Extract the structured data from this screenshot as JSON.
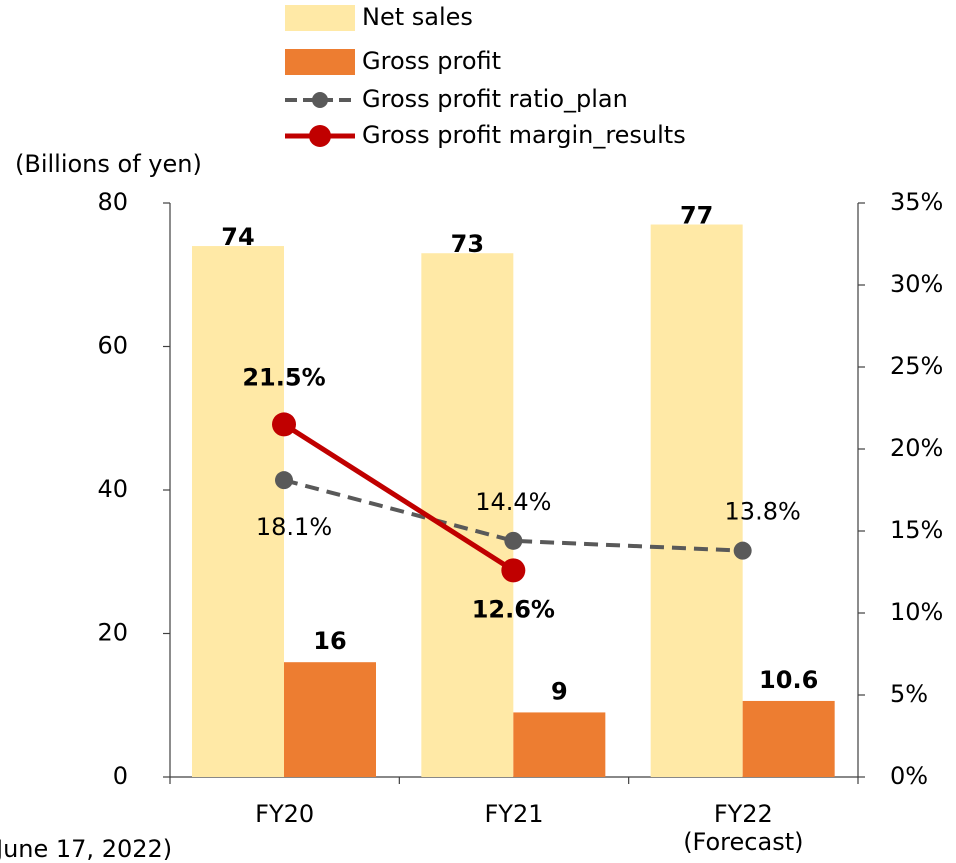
{
  "chart_data": {
    "type": "bar",
    "axis_label": "(Billions of yen)",
    "note": "June 17, 2022)",
    "categories": [
      "FY20",
      "FY21",
      "FY22 (Forecast)"
    ],
    "series": [
      {
        "name": "Net sales",
        "type": "bar",
        "color": "#ffe9a6",
        "values": [
          74,
          73,
          77
        ]
      },
      {
        "name": "Gross profit",
        "type": "bar",
        "color": "#ed7d31",
        "values": [
          16,
          9,
          10.6
        ]
      },
      {
        "name": "Gross profit ratio_plan",
        "type": "line",
        "axis": "y2",
        "dashed": true,
        "color": "#595959",
        "values": [
          18.1,
          14.4,
          13.8
        ],
        "value_labels": [
          "18.1%",
          "14.4%",
          "13.8%"
        ]
      },
      {
        "name": "Gross profit margin_results",
        "type": "line",
        "axis": "y2",
        "dashed": false,
        "color": "#c00000",
        "values": [
          21.5,
          12.6,
          null
        ],
        "value_labels": [
          "21.5%",
          "12.6%",
          null
        ]
      }
    ],
    "ylim": [
      0,
      80
    ],
    "yticks": [
      0,
      20,
      40,
      60,
      80
    ],
    "y2lim": [
      0,
      35
    ],
    "y2ticks": [
      {
        "value": 0,
        "label": "0%"
      },
      {
        "value": 5,
        "label": "5%"
      },
      {
        "value": 10,
        "label": "10%"
      },
      {
        "value": 15,
        "label": "15%"
      },
      {
        "value": 20,
        "label": "20%"
      },
      {
        "value": 25,
        "label": "25%"
      },
      {
        "value": 30,
        "label": "30%"
      },
      {
        "value": 35,
        "label": "35%"
      }
    ]
  }
}
